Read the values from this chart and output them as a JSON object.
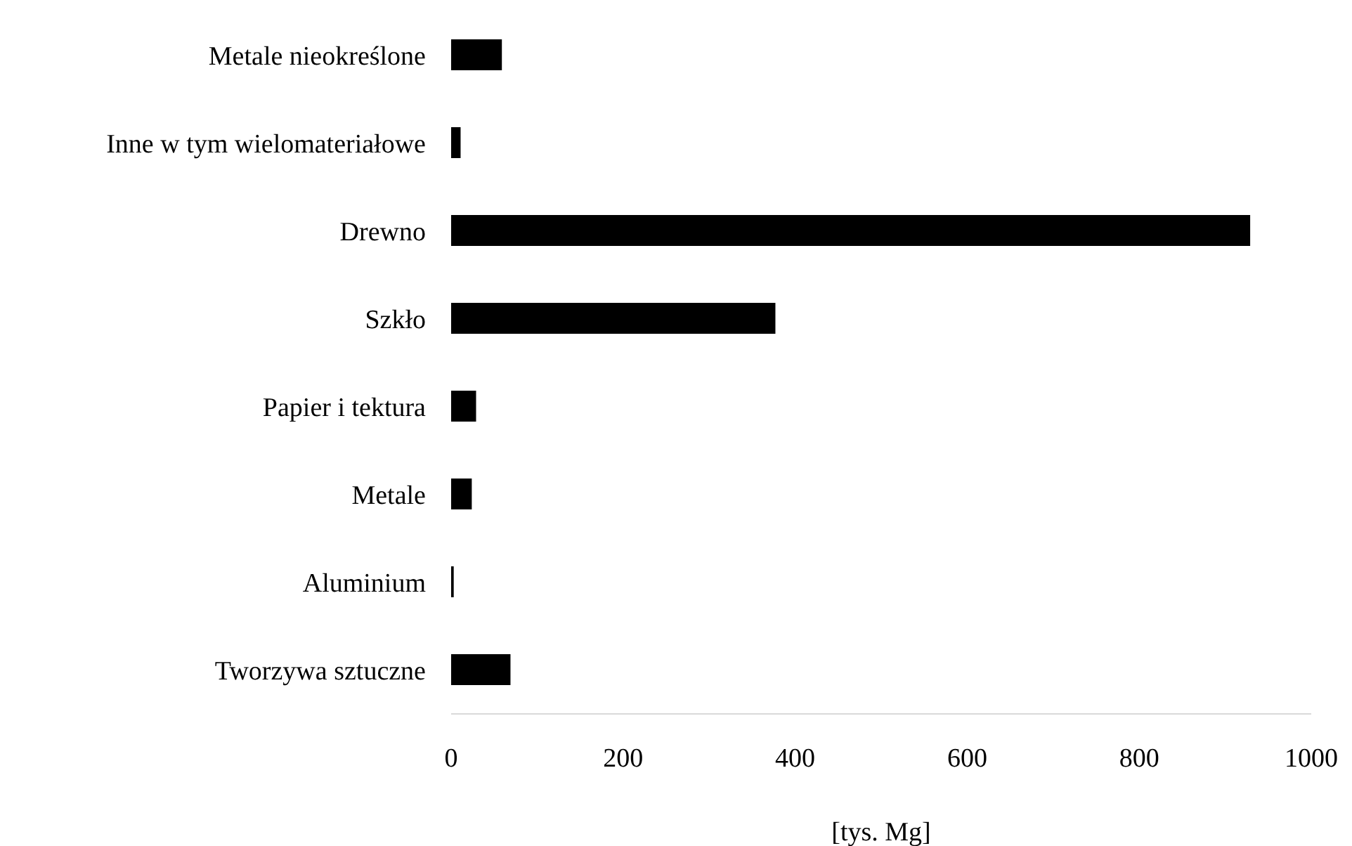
{
  "chart_data": {
    "type": "bar",
    "orientation": "horizontal",
    "xlabel": "[tys. Mg]",
    "categories": [
      "Metale nieokreślone",
      "Inne w tym wielomateriałowe",
      "Drewno",
      "Szkło",
      "Papier i tektura",
      "Metale",
      "Aluminium",
      "Tworzywa sztuczne"
    ],
    "values": [
      59,
      11,
      929,
      377,
      29,
      24,
      3,
      69
    ],
    "color": "#000000",
    "xlim": [
      0,
      1000
    ],
    "xticks": [
      0,
      200,
      400,
      600,
      800,
      1000
    ],
    "grid": false,
    "legend": false
  }
}
